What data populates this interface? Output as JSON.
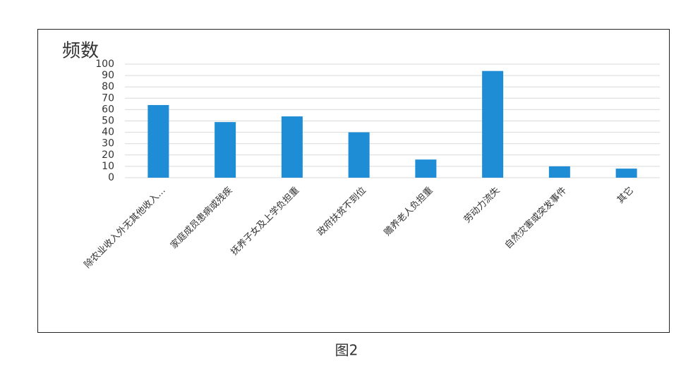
{
  "chart_data": {
    "type": "bar",
    "y_label": "频数",
    "caption": "图2",
    "categories": [
      "除农业收入外无其他收入…",
      "家庭成员患病或残疾",
      "抚养子女及上学负担重",
      "政府扶贫不到位",
      "赡养老人负担重",
      "劳动力流失",
      "自然灾害或突发事件",
      "其它"
    ],
    "values": [
      64,
      49,
      54,
      40,
      16,
      94,
      10,
      8
    ],
    "color": "#1f8dd6",
    "ylim": [
      0,
      100
    ],
    "yticks": [
      0,
      10,
      20,
      30,
      40,
      50,
      60,
      70,
      80,
      90,
      100
    ],
    "grid": true
  }
}
